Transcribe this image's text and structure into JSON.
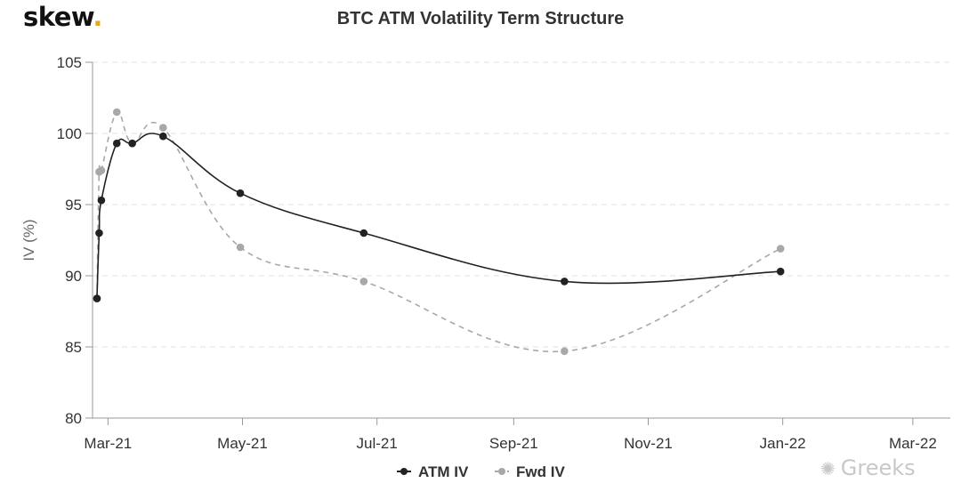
{
  "logo": {
    "text": "skew",
    "dot": "."
  },
  "watermark": {
    "icon": "wechat-icon",
    "text": "Greeks"
  },
  "colors": {
    "atm": "#222222",
    "fwd": "#a8a8a8",
    "grid": "#e2e2e2",
    "axis": "#999999",
    "logo_dot": "#e6a817"
  },
  "chart_data": {
    "type": "line",
    "title": "BTC ATM Volatility Term Structure",
    "ylabel": "IV (%)",
    "xlabel": "",
    "ylim": [
      80,
      105
    ],
    "yticks": [
      80,
      85,
      90,
      95,
      100,
      105
    ],
    "xlim": [
      "2021-02-22",
      "2022-03-18"
    ],
    "xticks": [
      {
        "date": "2021-03-01",
        "label": "Mar-21"
      },
      {
        "date": "2021-05-01",
        "label": "May-21"
      },
      {
        "date": "2021-07-01",
        "label": "Jul-21"
      },
      {
        "date": "2021-09-01",
        "label": "Sep-21"
      },
      {
        "date": "2021-11-01",
        "label": "Nov-21"
      },
      {
        "date": "2022-01-01",
        "label": "Jan-22"
      },
      {
        "date": "2022-03-01",
        "label": "Mar-22"
      }
    ],
    "grid": "horizontal dashed",
    "legend": "bottom-center",
    "series": [
      {
        "name": "ATM IV",
        "style": "solid",
        "points": [
          {
            "x": "2021-02-24",
            "y": 88.4
          },
          {
            "x": "2021-02-25",
            "y": 93.0
          },
          {
            "x": "2021-02-26",
            "y": 95.3
          },
          {
            "x": "2021-03-05",
            "y": 99.3
          },
          {
            "x": "2021-03-12",
            "y": 99.3
          },
          {
            "x": "2021-03-26",
            "y": 99.8
          },
          {
            "x": "2021-04-30",
            "y": 95.8
          },
          {
            "x": "2021-06-25",
            "y": 93.0
          },
          {
            "x": "2021-09-24",
            "y": 89.6
          },
          {
            "x": "2021-12-31",
            "y": 90.3
          }
        ]
      },
      {
        "name": "Fwd IV",
        "style": "dashed",
        "points": [
          {
            "x": "2021-02-24",
            "y": 88.4
          },
          {
            "x": "2021-02-25",
            "y": 97.3
          },
          {
            "x": "2021-02-26",
            "y": 97.4
          },
          {
            "x": "2021-03-05",
            "y": 101.5
          },
          {
            "x": "2021-03-12",
            "y": 99.3
          },
          {
            "x": "2021-03-26",
            "y": 100.4
          },
          {
            "x": "2021-04-30",
            "y": 92.0
          },
          {
            "x": "2021-06-25",
            "y": 89.6
          },
          {
            "x": "2021-09-24",
            "y": 84.7
          },
          {
            "x": "2021-12-31",
            "y": 91.9
          }
        ]
      }
    ]
  }
}
